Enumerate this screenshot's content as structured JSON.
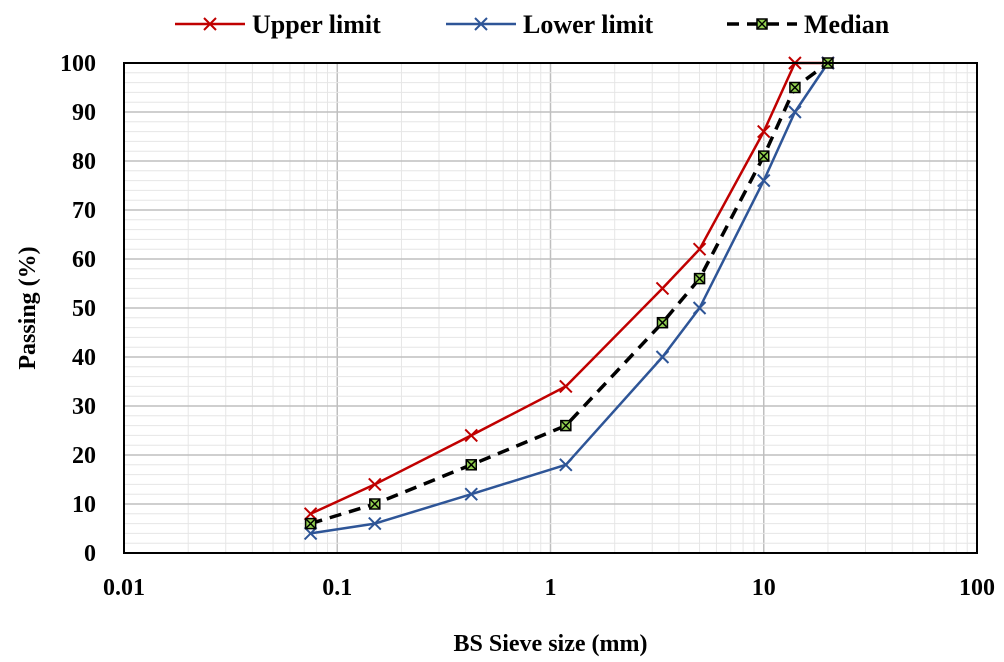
{
  "chart_data": {
    "type": "line",
    "x_scale": "log",
    "xlabel": "BS Sieve size (mm)",
    "ylabel": "Passing (%)",
    "xlim": [
      0.01,
      100
    ],
    "ylim": [
      0,
      100
    ],
    "x_ticks": [
      "0.01",
      "0.1",
      "1",
      "10",
      "100"
    ],
    "y_ticks": [
      "0",
      "10",
      "20",
      "30",
      "40",
      "50",
      "60",
      "70",
      "80",
      "90",
      "100"
    ],
    "grid": true,
    "legend_position": "top",
    "series": [
      {
        "name": "Upper limit",
        "color": "#C00000",
        "marker": "x",
        "line_style": "solid",
        "x": [
          0.075,
          0.15,
          0.425,
          1.18,
          3.35,
          5,
          10,
          14,
          20
        ],
        "y": [
          8,
          14,
          24,
          34,
          54,
          62,
          86,
          100,
          100
        ]
      },
      {
        "name": "Lower limit",
        "color": "#2E5597",
        "marker": "x",
        "line_style": "solid",
        "x": [
          0.075,
          0.15,
          0.425,
          1.18,
          3.35,
          5,
          10,
          14,
          20
        ],
        "y": [
          4,
          6,
          12,
          18,
          40,
          50,
          76,
          90,
          100
        ]
      },
      {
        "name": "Median",
        "color": "#000000",
        "marker_fill": "#92D050",
        "marker": "square-x",
        "line_style": "dashed",
        "x": [
          0.075,
          0.15,
          0.425,
          1.18,
          3.35,
          5,
          10,
          14,
          20
        ],
        "y": [
          6,
          10,
          18,
          26,
          47,
          56,
          81,
          95,
          100
        ]
      }
    ]
  }
}
